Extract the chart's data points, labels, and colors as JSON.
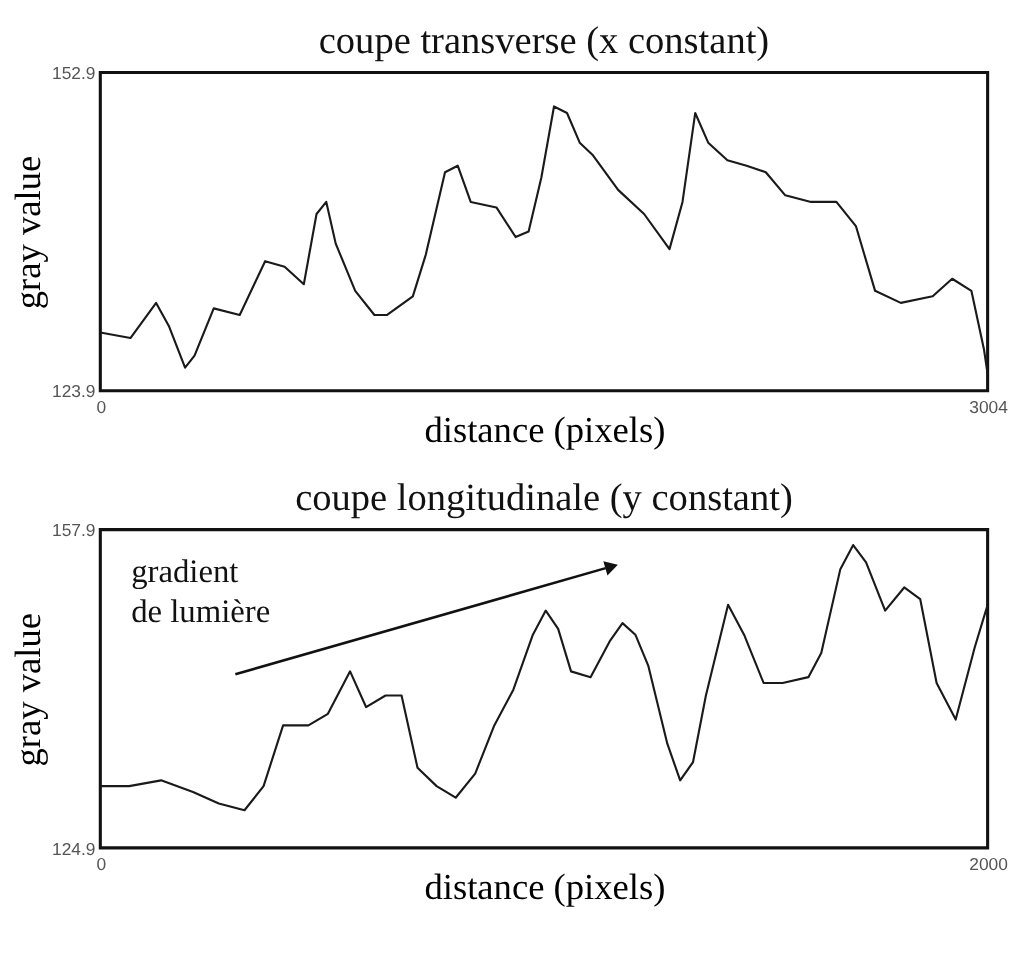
{
  "chart_data": [
    {
      "type": "line",
      "title": "coupe transverse (x constant)",
      "xlabel": "distance (pixels)",
      "ylabel": "gray value",
      "xlim": [
        0,
        3004
      ],
      "xticks": [
        0,
        3004
      ],
      "ylim": [
        123.9,
        152.9
      ],
      "yticks": [
        123.9,
        152.9
      ],
      "grid": false,
      "marker": "none",
      "line_style": "solid",
      "x": [
        0,
        102,
        189,
        232,
        287,
        319,
        384,
        472,
        558,
        624,
        689,
        732,
        765,
        797,
        863,
        928,
        971,
        1058,
        1102,
        1167,
        1210,
        1254,
        1341,
        1406,
        1450,
        1493,
        1536,
        1580,
        1623,
        1666,
        1753,
        1841,
        1927,
        1971,
        2014,
        2058,
        2123,
        2188,
        2253,
        2319,
        2406,
        2492,
        2558,
        2623,
        2710,
        2818,
        2884,
        2949,
        2992,
        3004
      ],
      "series": [
        {
          "color": "#1a1a1a",
          "values": [
            129.2,
            128.7,
            131.9,
            129.8,
            126.0,
            127.1,
            131.4,
            130.8,
            135.7,
            135.2,
            133.6,
            140.0,
            141.1,
            137.3,
            133.0,
            130.8,
            130.8,
            132.5,
            136.3,
            143.8,
            144.4,
            141.1,
            140.6,
            137.9,
            138.4,
            143.3,
            149.8,
            149.2,
            146.5,
            145.4,
            142.2,
            140.0,
            136.8,
            141.1,
            149.2,
            146.5,
            144.9,
            144.4,
            143.8,
            141.7,
            141.1,
            141.1,
            138.9,
            133.0,
            131.9,
            132.5,
            134.1,
            133.0,
            127.6,
            125.4
          ]
        }
      ]
    },
    {
      "type": "line",
      "title": "coupe longitudinale (y constant)",
      "xlabel": "distance (pixels)",
      "ylabel": "gray value",
      "xlim": [
        0,
        2000
      ],
      "xticks": [
        0,
        2000
      ],
      "ylim": [
        124.9,
        157.9
      ],
      "yticks": [
        124.9,
        157.9
      ],
      "grid": false,
      "marker": "none",
      "line_style": "solid",
      "annotations": [
        "gradient\nde lumière"
      ],
      "x": [
        0,
        65,
        137,
        209,
        267,
        325,
        368,
        412,
        469,
        513,
        563,
        599,
        643,
        679,
        715,
        758,
        801,
        845,
        888,
        931,
        975,
        1004,
        1032,
        1061,
        1105,
        1148,
        1177,
        1206,
        1235,
        1278,
        1307,
        1336,
        1365,
        1415,
        1451,
        1495,
        1538,
        1596,
        1625,
        1668,
        1697,
        1726,
        1769,
        1812,
        1848,
        1885,
        1928,
        1971,
        2000
      ],
      "series": [
        {
          "color": "#1a1a1a",
          "values": [
            131.3,
            131.3,
            131.9,
            130.7,
            129.5,
            128.8,
            131.3,
            137.6,
            137.6,
            138.8,
            143.2,
            139.5,
            140.7,
            140.7,
            133.2,
            131.3,
            130.1,
            132.6,
            137.6,
            141.3,
            147.0,
            149.5,
            147.6,
            143.2,
            142.6,
            146.3,
            148.2,
            147.0,
            143.8,
            135.7,
            131.9,
            133.8,
            140.7,
            150.1,
            147.0,
            142.0,
            142.0,
            142.6,
            145.1,
            153.8,
            156.3,
            154.5,
            149.5,
            151.9,
            150.7,
            142.0,
            138.2,
            145.7,
            150.1
          ]
        }
      ]
    }
  ]
}
